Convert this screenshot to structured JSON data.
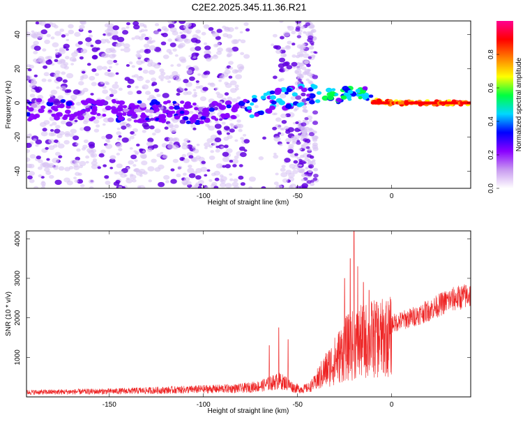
{
  "title": "C2E2.2025.345.11.36.R21",
  "colors": {
    "spectrum_dot_light": "#d9c4f4",
    "spectrum_dot_dark": "#6200e0",
    "snr_line": "#ee2222",
    "frame": "#000000"
  },
  "chart_data": [
    {
      "type": "heatmap",
      "title": "C2E2.2025.345.11.36.R21",
      "xlabel": "Height of straight line (km)",
      "ylabel": "Frequency (Hz)",
      "xlim": [
        -194,
        42
      ],
      "ylim": [
        -50,
        48
      ],
      "xticks": [
        -150,
        -100,
        -50,
        0
      ],
      "xtick_labels": [
        "-150",
        "-100",
        "-50",
        "0"
      ],
      "yticks": [
        -40,
        -20,
        0,
        20,
        40
      ],
      "ytick_labels": [
        "-40",
        "-20",
        "0",
        "20",
        "40"
      ],
      "ridge": [
        {
          "x": -194,
          "y": -4
        },
        {
          "x": -125,
          "y": -5
        },
        {
          "x": -90,
          "y": -6
        },
        {
          "x": -75,
          "y": -2
        },
        {
          "x": -60,
          "y": 2
        },
        {
          "x": -46,
          "y": 5
        },
        {
          "x": -30,
          "y": 4
        },
        {
          "x": -15,
          "y": 6
        },
        {
          "x": -10,
          "y": 1
        },
        {
          "x": 0,
          "y": 0
        },
        {
          "x": 42,
          "y": 0
        }
      ],
      "colorbar": {
        "label": "Normalized spectral amplitude",
        "range": [
          0,
          1
        ],
        "ticks": [
          0.0,
          0.2,
          0.4,
          0.6,
          0.8
        ],
        "tick_labels": [
          "0.0",
          "0.2",
          "0.4",
          "0.6",
          "0.8"
        ],
        "stops": [
          "#ffffff",
          "#c89af0",
          "#8a00ff",
          "#0000ff",
          "#00d8ff",
          "#00ff40",
          "#ffff00",
          "#ff8000",
          "#ff0000",
          "#ff0090"
        ]
      }
    },
    {
      "type": "line",
      "xlabel": "Height of straight line (km)",
      "ylabel": "SNR (10 * v/v)",
      "xlim": [
        -194,
        42
      ],
      "ylim": [
        0,
        4200
      ],
      "xticks": [
        -150,
        -100,
        -50,
        0
      ],
      "xtick_labels": [
        "-150",
        "-100",
        "-50",
        "0"
      ],
      "yticks": [
        1000,
        2000,
        3000,
        4000
      ],
      "ytick_labels": [
        "1000",
        "2000",
        "3000",
        "4000"
      ],
      "envelope": [
        {
          "x": -194,
          "y": 150
        },
        {
          "x": -150,
          "y": 180
        },
        {
          "x": -120,
          "y": 220
        },
        {
          "x": -100,
          "y": 250
        },
        {
          "x": -80,
          "y": 280
        },
        {
          "x": -70,
          "y": 350
        },
        {
          "x": -64,
          "y": 450
        },
        {
          "x": -60,
          "y": 520
        },
        {
          "x": -56,
          "y": 450
        },
        {
          "x": -52,
          "y": 300
        },
        {
          "x": -48,
          "y": 250
        },
        {
          "x": -44,
          "y": 300
        },
        {
          "x": -40,
          "y": 500
        },
        {
          "x": -35,
          "y": 850
        },
        {
          "x": -30,
          "y": 1150
        },
        {
          "x": -25,
          "y": 1500
        },
        {
          "x": -20,
          "y": 1650
        },
        {
          "x": -15,
          "y": 1750
        },
        {
          "x": -10,
          "y": 1850
        },
        {
          "x": -5,
          "y": 1850
        },
        {
          "x": 0,
          "y": 1900
        },
        {
          "x": 10,
          "y": 2050
        },
        {
          "x": 20,
          "y": 2250
        },
        {
          "x": 30,
          "y": 2500
        },
        {
          "x": 42,
          "y": 2650
        }
      ],
      "spikes": [
        {
          "x": -60,
          "y": 1750
        },
        {
          "x": -65,
          "y": 1300
        },
        {
          "x": -55,
          "y": 1450
        },
        {
          "x": -25,
          "y": 3000
        },
        {
          "x": -22,
          "y": 3500
        },
        {
          "x": -20,
          "y": 4200
        },
        {
          "x": -18,
          "y": 3300
        },
        {
          "x": -15,
          "y": 2900
        },
        {
          "x": -12,
          "y": 2700
        },
        {
          "x": -8,
          "y": 2400
        },
        {
          "x": -3,
          "y": 2300
        }
      ]
    }
  ]
}
